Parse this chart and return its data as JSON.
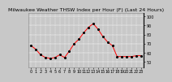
{
  "title": "Milwaukee Weather THSW Index per Hour (F) (Last 24 Hours)",
  "background_color": "#c8c8c8",
  "plot_background": "#c8c8c8",
  "line_color": "#ff0000",
  "dot_color": "#000000",
  "grid_color": "#ffffff",
  "hours": [
    0,
    1,
    2,
    3,
    4,
    5,
    6,
    7,
    8,
    9,
    10,
    11,
    12,
    13,
    14,
    15,
    16,
    17,
    18,
    19,
    20,
    21,
    22,
    23
  ],
  "values": [
    68,
    64,
    58,
    55,
    54,
    55,
    58,
    55,
    62,
    70,
    75,
    82,
    88,
    92,
    86,
    78,
    72,
    68,
    56,
    56,
    56,
    56,
    57,
    57
  ],
  "ylim_min": 44,
  "ylim_max": 104,
  "tick_fontsize": 3.5,
  "title_fontsize": 4.5,
  "yticks": [
    50,
    60,
    70,
    80,
    90,
    100
  ],
  "ytick_labels": [
    "50",
    "60",
    "70",
    "80",
    "90",
    "100"
  ]
}
